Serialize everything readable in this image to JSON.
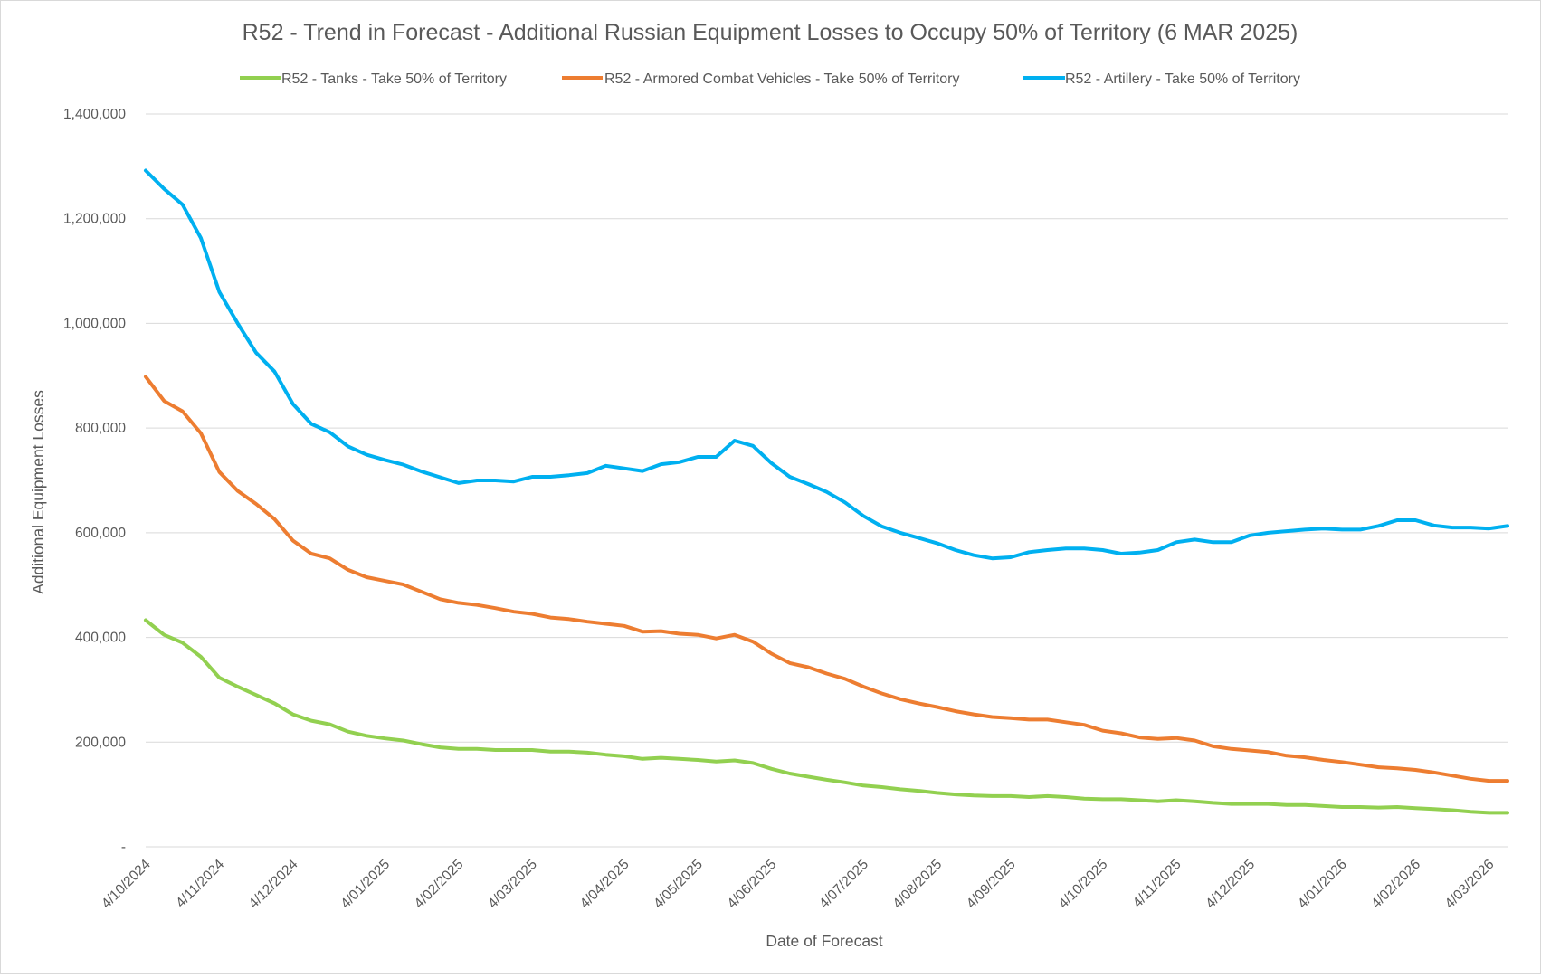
{
  "chart_data": {
    "type": "line",
    "title": "R52 - Trend in Forecast - Additional Russian Equipment Losses to Occupy 50% of Territory (6 MAR 2025)",
    "xlabel": "Date of Forecast",
    "ylabel": "Additional Equipment Losses",
    "ylim": [
      0,
      1400000
    ],
    "y_ticks": [
      {
        "value": 0,
        "label": "-"
      },
      {
        "value": 200000,
        "label": "200,000"
      },
      {
        "value": 400000,
        "label": "400,000"
      },
      {
        "value": 600000,
        "label": "600,000"
      },
      {
        "value": 800000,
        "label": "800,000"
      },
      {
        "value": 1000000,
        "label": "1,000,000"
      },
      {
        "value": 1200000,
        "label": "1,200,000"
      },
      {
        "value": 1400000,
        "label": "1,400,000"
      }
    ],
    "grid": true,
    "legend": "top",
    "x_ticks": [
      {
        "index": 0,
        "label": "4/10/2024"
      },
      {
        "index": 4,
        "label": "4/11/2024"
      },
      {
        "index": 8,
        "label": "4/12/2024"
      },
      {
        "index": 13,
        "label": "4/01/2025"
      },
      {
        "index": 17,
        "label": "4/02/2025"
      },
      {
        "index": 21,
        "label": "4/03/2025"
      },
      {
        "index": 26,
        "label": "4/04/2025"
      },
      {
        "index": 30,
        "label": "4/05/2025"
      },
      {
        "index": 34,
        "label": "4/06/2025"
      },
      {
        "index": 39,
        "label": "4/07/2025"
      },
      {
        "index": 43,
        "label": "4/08/2025"
      },
      {
        "index": 47,
        "label": "4/09/2025"
      },
      {
        "index": 52,
        "label": "4/10/2025"
      },
      {
        "index": 56,
        "label": "4/11/2025"
      },
      {
        "index": 60,
        "label": "4/12/2025"
      },
      {
        "index": 65,
        "label": "4/01/2026"
      },
      {
        "index": 69,
        "label": "4/02/2026"
      },
      {
        "index": 73,
        "label": "4/03/2026"
      }
    ],
    "series": [
      {
        "name": "R52 - Tanks - Take 50% of Territory",
        "color": "#92d050",
        "values": [
          433000,
          405000,
          390000,
          363000,
          323000,
          306000,
          290000,
          274000,
          253000,
          241000,
          234000,
          220000,
          212000,
          207000,
          203000,
          196000,
          190000,
          187000,
          187000,
          185000,
          185000,
          185000,
          182000,
          182000,
          180000,
          176000,
          173000,
          168000,
          170000,
          168000,
          166000,
          163000,
          165000,
          160000,
          149000,
          140000,
          134000,
          128000,
          123000,
          117000,
          114000,
          110000,
          107000,
          103000,
          100000,
          98000,
          97000,
          97000,
          95000,
          97000,
          95000,
          92000,
          91000,
          91000,
          89000,
          87000,
          89000,
          87000,
          84000,
          82000,
          82000,
          82000,
          80000,
          80000,
          78000,
          76000,
          76000,
          75000,
          76000,
          74000,
          72000,
          70000,
          67000,
          65000,
          65000
        ]
      },
      {
        "name": "R52 - Armored Combat Vehicles - Take 50% of Territory",
        "color": "#ed7d31",
        "values": [
          898000,
          852000,
          832000,
          790000,
          716000,
          680000,
          655000,
          626000,
          585000,
          560000,
          551000,
          529000,
          515000,
          508000,
          501000,
          487000,
          473000,
          466000,
          462000,
          456000,
          449000,
          445000,
          438000,
          435000,
          430000,
          426000,
          422000,
          411000,
          412000,
          407000,
          405000,
          398000,
          405000,
          392000,
          369000,
          351000,
          343000,
          331000,
          321000,
          306000,
          293000,
          282000,
          274000,
          267000,
          259000,
          253000,
          248000,
          246000,
          243000,
          243000,
          238000,
          233000,
          222000,
          217000,
          209000,
          206000,
          208000,
          203000,
          192000,
          187000,
          184000,
          181000,
          174000,
          171000,
          166000,
          162000,
          157000,
          152000,
          150000,
          147000,
          142000,
          136000,
          130000,
          126000,
          126000
        ]
      },
      {
        "name": "R52 - Artillery - Take 50% of Territory",
        "color": "#00b0f0",
        "values": [
          1292000,
          1257000,
          1227000,
          1163000,
          1060000,
          1000000,
          944000,
          908000,
          846000,
          808000,
          792000,
          765000,
          749000,
          739000,
          730000,
          717000,
          706000,
          695000,
          700000,
          700000,
          698000,
          707000,
          707000,
          710000,
          714000,
          728000,
          723000,
          718000,
          731000,
          735000,
          745000,
          745000,
          776000,
          766000,
          733000,
          707000,
          693000,
          678000,
          658000,
          632000,
          612000,
          600000,
          590000,
          580000,
          567000,
          557000,
          551000,
          553000,
          563000,
          567000,
          570000,
          570000,
          567000,
          560000,
          562000,
          567000,
          582000,
          587000,
          582000,
          582000,
          595000,
          600000,
          603000,
          606000,
          608000,
          606000,
          606000,
          613000,
          624000,
          624000,
          614000,
          610000,
          610000,
          608000,
          613000
        ]
      }
    ]
  }
}
